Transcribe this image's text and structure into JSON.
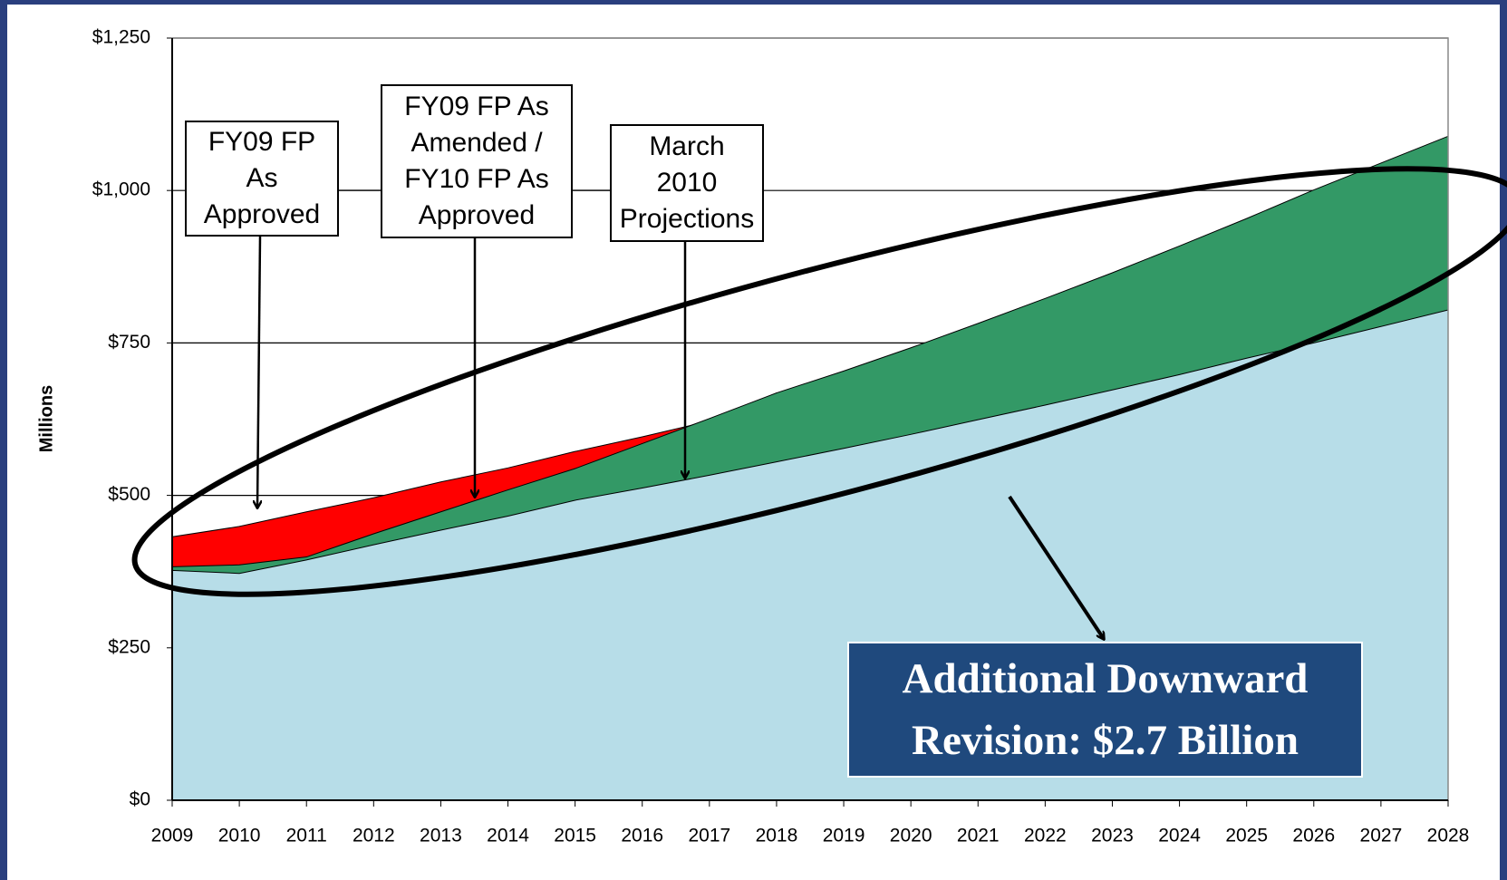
{
  "chart_data": {
    "type": "area",
    "y_label": "Millions",
    "categories": [
      "2009",
      "2010",
      "2011",
      "2012",
      "2013",
      "2014",
      "2015",
      "2016",
      "2017",
      "2018",
      "2019",
      "2020",
      "2021",
      "2022",
      "2023",
      "2024",
      "2025",
      "2026",
      "2027",
      "2028"
    ],
    "series": [
      {
        "name": "FY09 FP As Approved",
        "color": "#ff0000",
        "values": [
          432,
          449,
          473,
          496,
          522,
          545,
          572,
          596,
          622,
          668,
          null,
          null,
          null,
          null,
          null,
          null,
          null,
          null,
          null,
          null
        ]
      },
      {
        "name": "FY09 FP As Amended / FY10 FP As Approved",
        "color": "#339966",
        "values": [
          383,
          386,
          399,
          437,
          473,
          509,
          544,
          585,
          626,
          668,
          704,
          742,
          782,
          823,
          865,
          909,
          954,
          1001,
          1045,
          1089
        ]
      },
      {
        "name": "March 2010 Projections",
        "color": "#b7dde8",
        "values": [
          377,
          372,
          394,
          419,
          443,
          466,
          492,
          512,
          533,
          555,
          577,
          600,
          624,
          648,
          673,
          698,
          725,
          750,
          777,
          804
        ]
      }
    ],
    "ylim": [
      0,
      1250
    ],
    "yticks": [
      {
        "value": 0,
        "label": "$0"
      },
      {
        "value": 250,
        "label": "$250"
      },
      {
        "value": 500,
        "label": "$500"
      },
      {
        "value": 750,
        "label": "$750"
      },
      {
        "value": 1000,
        "label": "$1,000"
      },
      {
        "value": 1250,
        "label": "$1,250"
      }
    ],
    "grid": true,
    "annotation": "Additional Downward Revision:  $2.7 Billion"
  }
}
